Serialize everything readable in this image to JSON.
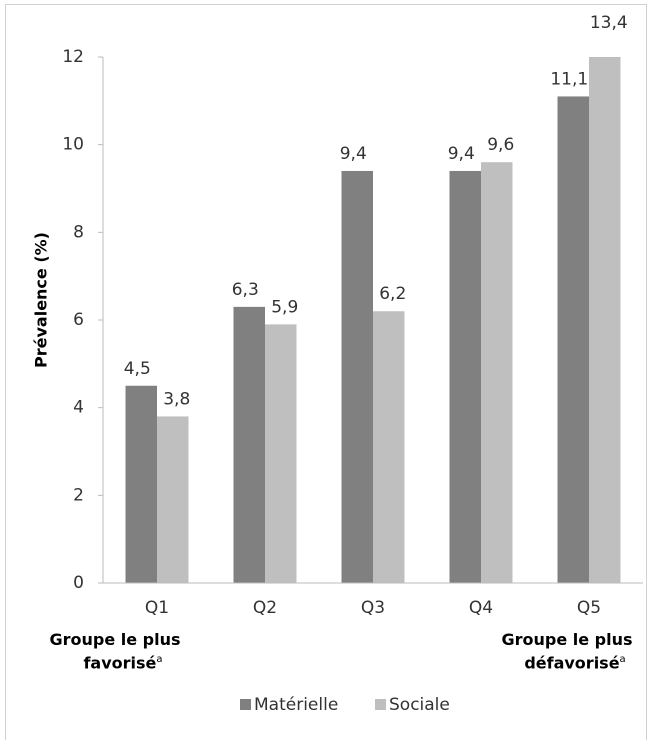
{
  "chart_data": {
    "type": "bar",
    "y_label": "Prévalence (%)",
    "categories": [
      "Q1",
      "Q2",
      "Q3",
      "Q4",
      "Q5"
    ],
    "series": [
      {
        "name": "Matérielle",
        "color": "#808080",
        "values": [
          4.5,
          6.3,
          9.4,
          9.4,
          11.1
        ],
        "value_labels": [
          "4,5",
          "6,3",
          "9,4",
          "9,4",
          "11,1"
        ]
      },
      {
        "name": "Sociale",
        "color": "#bfbfbf",
        "values": [
          3.8,
          5.9,
          6.2,
          9.6,
          13.4
        ],
        "value_labels": [
          "3,8",
          "5,9",
          "6,2",
          "9,6",
          "13,4"
        ]
      }
    ],
    "ylim": [
      0,
      12
    ],
    "yticks": [
      0,
      2,
      4,
      6,
      8,
      10,
      12
    ],
    "grid": false,
    "legend": "bottom",
    "annotations": [
      {
        "text": "Groupe le plus favorisé",
        "sup": "a"
      },
      {
        "text": "Groupe le plus défavorisé",
        "sup": "a"
      }
    ]
  }
}
